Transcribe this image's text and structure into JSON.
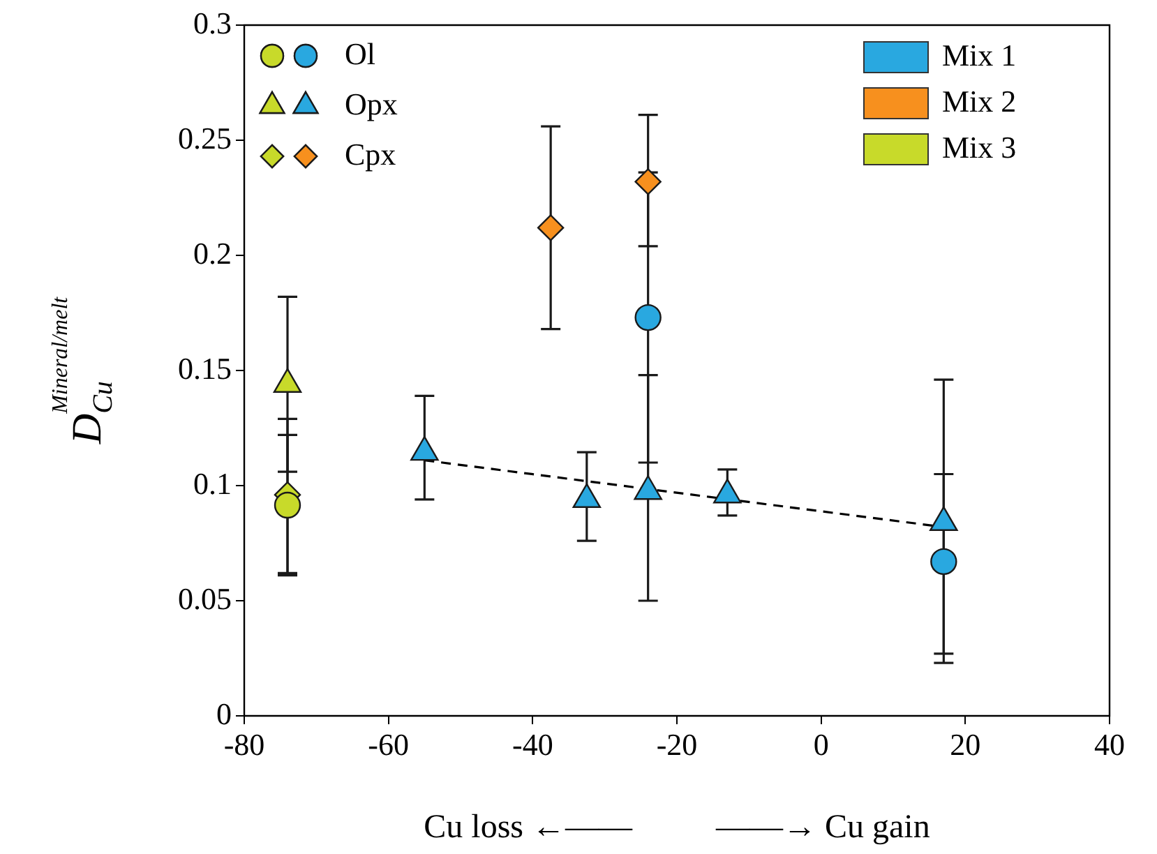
{
  "chart_data": {
    "type": "scatter",
    "xlabel": "Cu loss ←——          ——→ Cu gain",
    "ylabel": "D$_{Cu}$$^{Mineral/melt}$",
    "xlim": [
      -80,
      40
    ],
    "xticks": [
      -80,
      -60,
      -40,
      -20,
      0,
      20,
      40
    ],
    "ylim": [
      0,
      0.3
    ],
    "yticks": [
      0,
      0.05,
      0.1,
      0.15,
      0.2,
      0.25,
      0.3
    ],
    "grid": false,
    "legend": "top left",
    "series": [
      {
        "name": "Mix 1",
        "type": "bar",
        "color": "#29a8e0"
      },
      {
        "name": "Mix 2",
        "type": "bar",
        "color": "#f7901e"
      },
      {
        "name": "Mix 3",
        "type": "bar",
        "color": "#c8da2a"
      },
      {
        "type": "line",
        "color": "#000000",
        "line_style": "dashed",
        "marker": "none",
        "x": [
          -55,
          17
        ],
        "values": [
          0.111,
          0.082
        ]
      },
      {
        "name": "Ol",
        "marker": "circle",
        "x": [
          -74,
          -24,
          17
        ],
        "values": [
          0.0915,
          0.173,
          0.067
        ],
        "colors": [
          "#c8da2a",
          "#29a8e0",
          "#29a8e0"
        ],
        "errors": [
          [
            0.061,
            0.122
          ],
          [
            0.11,
            0.236
          ],
          [
            0.027,
            0.105
          ]
        ]
      },
      {
        "name": "Opx",
        "marker": "triangle",
        "x": [
          -74,
          -55,
          -32.5,
          -24,
          -13,
          17
        ],
        "values": [
          0.144,
          0.1145,
          0.094,
          0.0975,
          0.096,
          0.084
        ],
        "colors": [
          "#c8da2a",
          "#29a8e0",
          "#29a8e0",
          "#29a8e0",
          "#29a8e0",
          "#29a8e0"
        ],
        "errors": [
          [
            0.106,
            0.182
          ],
          [
            0.094,
            0.139
          ],
          [
            0.076,
            0.1145
          ],
          [
            0.05,
            0.148
          ],
          [
            0.087,
            0.107
          ],
          [
            0.023,
            0.146
          ]
        ]
      },
      {
        "name": "Cpx",
        "marker": "diamond",
        "x": [
          -74,
          -37.5,
          -24
        ],
        "values": [
          0.096,
          0.212,
          0.232
        ],
        "colors": [
          "#c8da2a",
          "#f7901e",
          "#f7901e"
        ],
        "errors": [
          [
            0.062,
            0.129
          ],
          [
            0.168,
            0.256
          ],
          [
            0.204,
            0.261
          ]
        ]
      }
    ]
  }
}
